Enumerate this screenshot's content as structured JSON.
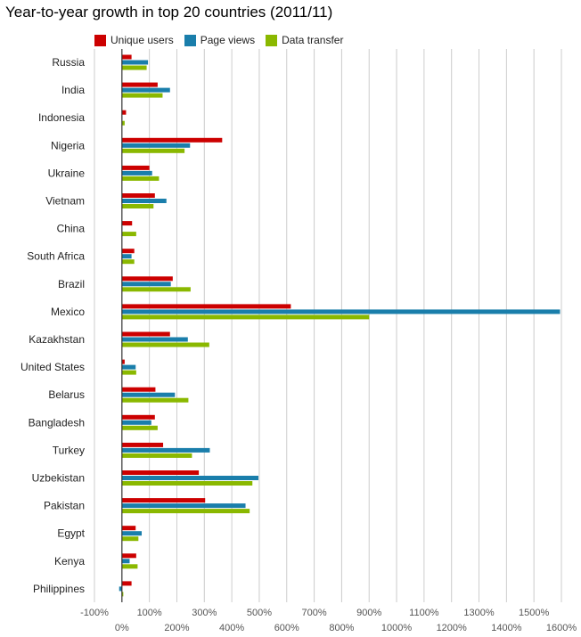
{
  "chart_data": {
    "type": "bar",
    "orientation": "horizontal",
    "title": "Year-to-year growth in top 20 countries (2011/11)",
    "categories": [
      "Russia",
      "India",
      "Indonesia",
      "Nigeria",
      "Ukraine",
      "Vietnam",
      "China",
      "South Africa",
      "Brazil",
      "Mexico",
      "Kazakhstan",
      "United States",
      "Belarus",
      "Bangladesh",
      "Turkey",
      "Uzbekistan",
      "Pakistan",
      "Egypt",
      "Kenya",
      "Philippines"
    ],
    "series": [
      {
        "name": "Unique users",
        "color": "#cc0000",
        "values": [
          35,
          130,
          15,
          365,
          100,
          120,
          37,
          45,
          185,
          615,
          175,
          10,
          122,
          120,
          150,
          280,
          303,
          50,
          52,
          35
        ]
      },
      {
        "name": "Page views",
        "color": "#1a7eab",
        "values": [
          95,
          175,
          0,
          248,
          110,
          162,
          0,
          35,
          178,
          1595,
          240,
          50,
          193,
          107,
          320,
          497,
          450,
          72,
          28,
          -10
        ]
      },
      {
        "name": "Data transfer",
        "color": "#8ab800",
        "values": [
          90,
          148,
          10,
          228,
          135,
          115,
          52,
          45,
          250,
          900,
          318,
          52,
          242,
          130,
          255,
          475,
          465,
          60,
          57,
          5
        ]
      }
    ],
    "xlim": [
      -100,
      1600
    ],
    "xticks": [
      -100,
      0,
      100,
      200,
      300,
      400,
      500,
      600,
      700,
      800,
      900,
      1000,
      1100,
      1200,
      1300,
      1400,
      1500,
      1600
    ],
    "xtick_labels": [
      "-100%",
      "0%",
      "100%",
      "200%",
      "300%",
      "400%",
      "500%",
      "600%",
      "700%",
      "800%",
      "900%",
      "1000%",
      "1100%",
      "1200%",
      "1300%",
      "1400%",
      "1500%",
      "1600%"
    ],
    "grid": true,
    "legend_position": "top-left"
  }
}
